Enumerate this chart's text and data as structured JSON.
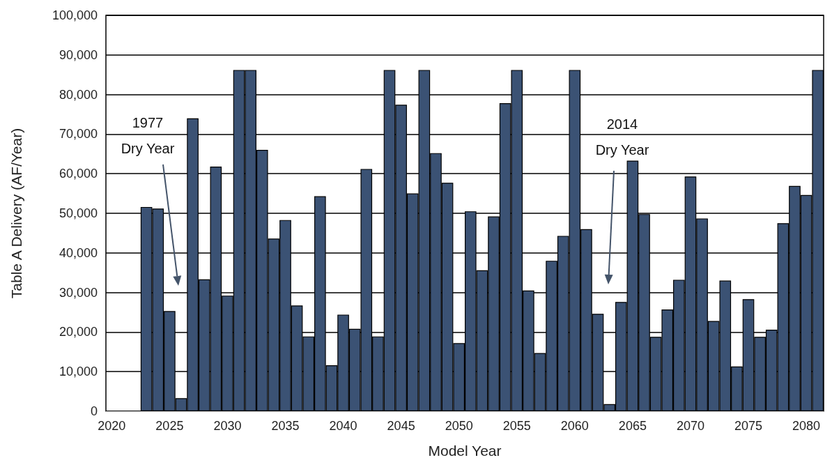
{
  "chart_data": {
    "type": "bar",
    "xlabel": "Model Year",
    "ylabel": "Table A Delivery (AF/Year)",
    "x": [
      2023,
      2024,
      2025,
      2026,
      2027,
      2028,
      2029,
      2030,
      2031,
      2032,
      2033,
      2034,
      2035,
      2036,
      2037,
      2038,
      2039,
      2040,
      2041,
      2042,
      2043,
      2044,
      2045,
      2046,
      2047,
      2048,
      2049,
      2050,
      2051,
      2052,
      2053,
      2054,
      2055,
      2056,
      2057,
      2058,
      2059,
      2060,
      2061,
      2062,
      2063,
      2064,
      2065,
      2066,
      2067,
      2068,
      2069,
      2070,
      2071,
      2072,
      2073,
      2074,
      2075,
      2076,
      2077,
      2078,
      2079,
      2080,
      2081
    ],
    "values": [
      51600,
      51200,
      25300,
      3300,
      74000,
      33300,
      61800,
      29200,
      86200,
      86200,
      66000,
      43600,
      48300,
      26700,
      18900,
      54300,
      11600,
      24400,
      20800,
      61200,
      18900,
      86200,
      77400,
      55000,
      86200,
      65200,
      57700,
      17200,
      50500,
      35600,
      49200,
      77800,
      86200,
      30500,
      14700,
      38000,
      44300,
      86200,
      46000,
      24600,
      1800,
      27600,
      63300,
      49800,
      18800,
      25700,
      33200,
      59300,
      48700,
      22800,
      33000,
      11300,
      28300,
      18800,
      20600,
      47500,
      56900,
      54600,
      86200
    ],
    "color": "#3b5274",
    "xlim": [
      2019.5,
      2081.5
    ],
    "xticks": [
      2020,
      2025,
      2030,
      2035,
      2040,
      2045,
      2050,
      2055,
      2060,
      2065,
      2070,
      2075,
      2080
    ],
    "ylim": [
      0,
      100000
    ],
    "yticks": [
      0,
      {
        "value": 10000,
        "label": "10,000"
      },
      {
        "value": 20000,
        "label": "20,000"
      },
      {
        "value": 30000,
        "label": "30,000"
      },
      {
        "value": 40000,
        "label": "40,000"
      },
      {
        "value": 50000,
        "label": "50,000"
      },
      {
        "value": 60000,
        "label": "60,000"
      },
      {
        "value": 70000,
        "label": "70,000"
      },
      {
        "value": 80000,
        "label": "80,000"
      },
      {
        "value": 90000,
        "label": "90,000"
      },
      {
        "value": 100000,
        "label": "100,000"
      }
    ],
    "grid": "y",
    "annotations": [
      "1977\nDry Year",
      "2014\nDry Year"
    ]
  }
}
